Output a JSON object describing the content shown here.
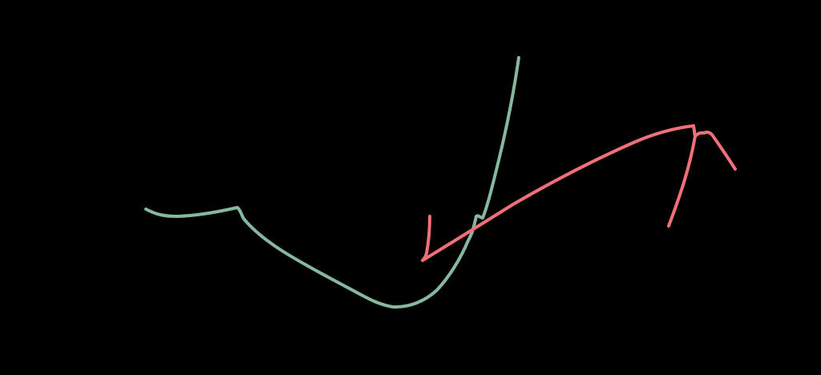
{
  "canvas": {
    "background": "#000000"
  },
  "strokes": [
    {
      "name": "green-freehand-stroke",
      "color": "#86b8a0"
    },
    {
      "name": "red-freehand-stroke",
      "color": "#f0707a"
    }
  ]
}
